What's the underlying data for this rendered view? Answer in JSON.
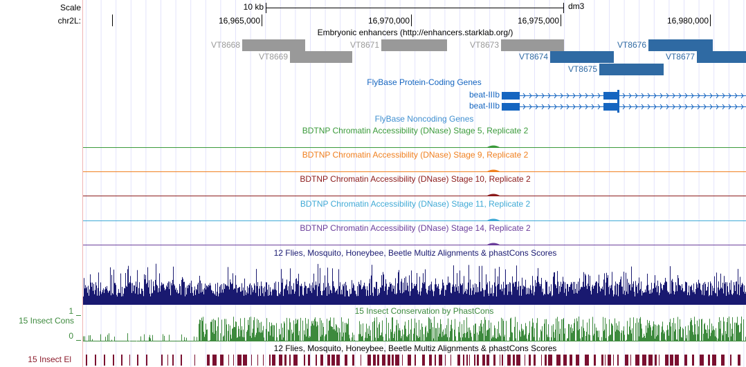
{
  "ruler": {
    "scale_label": "Scale",
    "scale_span": "10 kb",
    "assembly": "dm3",
    "chrom": "chr2L:",
    "positions": [
      "16,965,000",
      "16,970,000",
      "16,975,000",
      "16,980,000"
    ]
  },
  "enhancers": {
    "title": "Embryonic enhancers (http://enhancers.starklab.org/)",
    "features": [
      "VT8668",
      "VT8669",
      "VT8671",
      "VT8673",
      "VT8674",
      "VT8675",
      "VT8676",
      "VT8677"
    ]
  },
  "coding_genes": {
    "title": "FlyBase Protein-Coding Genes",
    "genes": [
      "beat-IIIb",
      "beat-IIIb"
    ]
  },
  "noncoding_genes": {
    "title": "FlyBase Noncoding Genes"
  },
  "dnase_tracks": [
    "BDTNP Chromatin Accessibility (DNase) Stage 5, Replicate 2",
    "BDTNP Chromatin Accessibility (DNase) Stage 9, Replicate 2",
    "BDTNP Chromatin Accessibility (DNase) Stage 10, Replicate 2",
    "BDTNP Chromatin Accessibility (DNase) Stage 11, Replicate 2",
    "BDTNP Chromatin Accessibility (DNase) Stage 14, Replicate 2"
  ],
  "multiz": {
    "title": "12 Flies, Mosquito, Honeybee, Beetle Multiz Alignments & phastCons Scores"
  },
  "phastcons": {
    "title": "15 Insect Conservation by PhastCons",
    "side_label": "15 Insect Cons",
    "max_label": "1",
    "min_label": "0"
  },
  "elements": {
    "title": "12 Flies, Mosquito, Honeybee, Beetle Multiz Alignments & phastCons Scores",
    "side_label": "15 Insect El"
  }
}
